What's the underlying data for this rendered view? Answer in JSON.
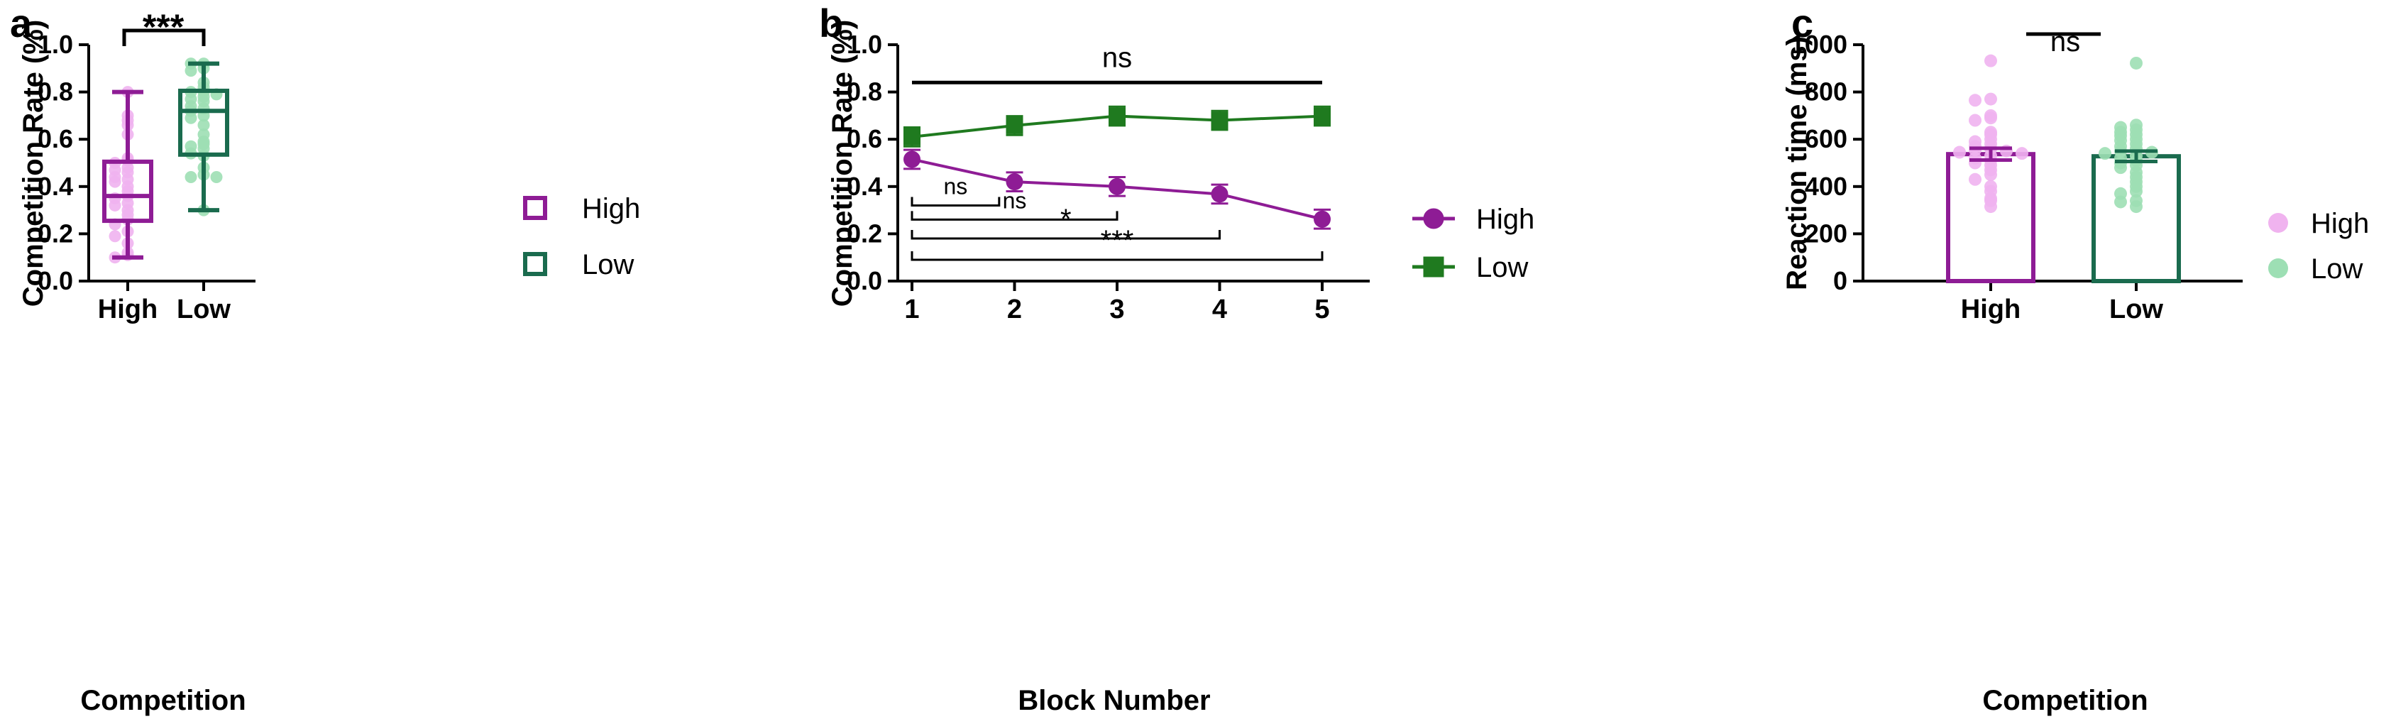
{
  "colors": {
    "high": "#8e1c95",
    "high_light": "#f0b3ef",
    "low": "#1a6b4e",
    "low_light": "#9ddfb4",
    "low_line": "#1f7a1f"
  },
  "chart_data": [
    {
      "panel": "a",
      "type": "box",
      "xlabel": "Competition",
      "ylabel": "Competition Rate (%)",
      "ylim": [
        0,
        1.0
      ],
      "yticks": [
        "0.0",
        "0.2",
        "0.4",
        "0.6",
        "0.8",
        "1.0"
      ],
      "categories": [
        "High",
        "Low"
      ],
      "legend": [
        "High",
        "Low"
      ],
      "significance": "***",
      "boxes": [
        {
          "name": "High",
          "min": 0.1,
          "q1": 0.255,
          "median": 0.36,
          "q3": 0.505,
          "max": 0.8,
          "points": [
            0.8,
            0.7,
            0.68,
            0.66,
            0.62,
            0.52,
            0.51,
            0.5,
            0.48,
            0.47,
            0.46,
            0.44,
            0.43,
            0.42,
            0.4,
            0.38,
            0.36,
            0.35,
            0.33,
            0.32,
            0.3,
            0.28,
            0.26,
            0.24,
            0.21,
            0.19,
            0.16,
            0.12,
            0.11,
            0.1
          ]
        },
        {
          "name": "Low",
          "min": 0.3,
          "q1": 0.535,
          "median": 0.72,
          "q3": 0.805,
          "max": 0.92,
          "points": [
            0.92,
            0.92,
            0.9,
            0.89,
            0.84,
            0.82,
            0.8,
            0.8,
            0.79,
            0.78,
            0.77,
            0.76,
            0.74,
            0.73,
            0.72,
            0.7,
            0.69,
            0.66,
            0.62,
            0.59,
            0.58,
            0.57,
            0.56,
            0.54,
            0.53,
            0.48,
            0.45,
            0.44,
            0.44,
            0.3
          ]
        }
      ]
    },
    {
      "panel": "b",
      "type": "line",
      "xlabel": "Block Number",
      "ylabel": "Competition Rate (%)",
      "ylim": [
        0,
        1.0
      ],
      "yticks": [
        "0.0",
        "0.2",
        "0.4",
        "0.6",
        "0.8",
        "1.0"
      ],
      "x": [
        1,
        2,
        3,
        4,
        5
      ],
      "xticks": [
        "1",
        "2",
        "3",
        "4",
        "5"
      ],
      "series": [
        {
          "name": "High",
          "marker": "circle",
          "values": [
            0.515,
            0.42,
            0.4,
            0.368,
            0.262
          ],
          "err": [
            0.04,
            0.04,
            0.04,
            0.04,
            0.04
          ]
        },
        {
          "name": "Low",
          "marker": "square",
          "values": [
            0.61,
            0.658,
            0.698,
            0.68,
            0.698
          ],
          "err": [
            0.04,
            0.04,
            0.04,
            0.04,
            0.04
          ]
        }
      ],
      "annotations": [
        {
          "from": 1,
          "to": 5,
          "label": "ns",
          "y": 0.84,
          "style": "bar"
        },
        {
          "from": 1,
          "to": 1.85,
          "label": "ns",
          "y": 0.32,
          "style": "bracket"
        },
        {
          "from": 1,
          "to": 3,
          "label": "ns",
          "y": 0.26,
          "style": "bracket"
        },
        {
          "from": 1,
          "to": 4,
          "label": "*",
          "y": 0.18,
          "style": "bracket"
        },
        {
          "from": 1,
          "to": 5,
          "label": "***",
          "y": 0.09,
          "style": "bracket"
        }
      ]
    },
    {
      "panel": "c",
      "type": "bar",
      "xlabel": "Competition",
      "ylabel": "Reaction time (ms)",
      "ylim": [
        0,
        1000
      ],
      "yticks": [
        "0",
        "200",
        "400",
        "600",
        "800",
        "1000"
      ],
      "categories": [
        "High",
        "Low"
      ],
      "legend": [
        "High",
        "Low"
      ],
      "significance": "ns",
      "bars": [
        {
          "name": "High",
          "mean": 537,
          "sem": 25,
          "points": [
            932,
            770,
            765,
            700,
            690,
            680,
            630,
            620,
            600,
            590,
            580,
            570,
            560,
            555,
            550,
            545,
            540,
            530,
            520,
            510,
            500,
            490,
            470,
            450,
            430,
            400,
            380,
            350,
            340,
            315
          ]
        },
        {
          "name": "Low",
          "mean": 528,
          "sem": 22,
          "points": [
            922,
            660,
            650,
            640,
            630,
            620,
            615,
            600,
            595,
            580,
            570,
            560,
            550,
            545,
            540,
            530,
            520,
            510,
            500,
            490,
            480,
            460,
            440,
            420,
            400,
            380,
            370,
            340,
            335,
            315
          ]
        }
      ]
    }
  ]
}
